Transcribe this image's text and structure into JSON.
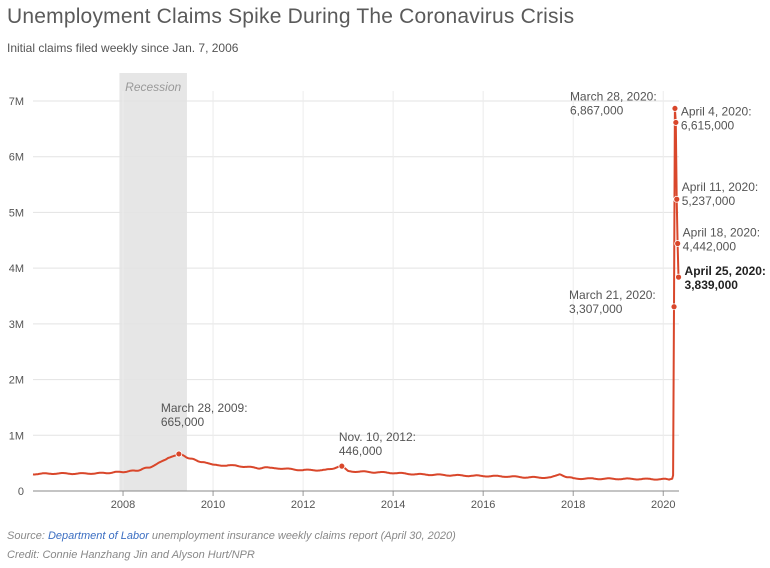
{
  "header": {
    "title": "Unemployment Claims Spike During The Coronavirus Crisis",
    "subtitle": "Initial claims filed weekly since Jan. 7, 2006"
  },
  "chart_data": {
    "type": "line",
    "title": "Unemployment Claims Spike During The Coronavirus Crisis",
    "subtitle": "Initial claims filed weekly since Jan. 7, 2006",
    "xlabel": "",
    "ylabel": "",
    "xlim": [
      2006.0,
      2020.35
    ],
    "ylim": [
      0,
      7000000
    ],
    "x_ticks": [
      2008,
      2010,
      2012,
      2014,
      2016,
      2018,
      2020
    ],
    "x_tick_labels": [
      "2008",
      "2010",
      "2012",
      "2014",
      "2016",
      "2018",
      "2020"
    ],
    "y_ticks": [
      0,
      1000000,
      2000000,
      3000000,
      4000000,
      5000000,
      6000000,
      7000000
    ],
    "y_tick_labels": [
      "0",
      "1M",
      "2M",
      "3M",
      "4M",
      "5M",
      "6M",
      "7M"
    ],
    "grid": true,
    "line_color": "#d9472b",
    "recession_color": "#e6e6e6",
    "recession": {
      "label": "Recession",
      "start": 2007.92,
      "end": 2009.42
    },
    "series": [
      {
        "name": "Initial claims",
        "x": [
          2006.0,
          2006.5,
          2007.0,
          2007.5,
          2007.92,
          2008.3,
          2008.6,
          2008.85,
          2009.0,
          2009.24,
          2009.5,
          2009.8,
          2010.0,
          2010.5,
          2011.0,
          2011.3,
          2011.5,
          2012.0,
          2012.5,
          2012.86,
          2013.0,
          2013.5,
          2014.0,
          2014.5,
          2015.0,
          2015.5,
          2016.0,
          2016.5,
          2017.0,
          2017.5,
          2017.7,
          2018.0,
          2018.5,
          2019.0,
          2019.5,
          2020.0,
          2020.15,
          2020.2,
          2020.22,
          2020.24
        ],
        "values": [
          305000,
          315000,
          312000,
          318000,
          340000,
          365000,
          430000,
          520000,
          600000,
          665000,
          580000,
          510000,
          465000,
          455000,
          410000,
          425000,
          405000,
          375000,
          375000,
          446000,
          355000,
          340000,
          325000,
          300000,
          290000,
          278000,
          270000,
          262000,
          245000,
          240000,
          290000,
          225000,
          220000,
          218000,
          215000,
          212000,
          211000,
          220000,
          282000,
          3307000
        ]
      }
    ],
    "points": [
      {
        "date": "March 28, 2009",
        "x": 2009.24,
        "value": 665000,
        "label_date": "March 28, 2009:",
        "label_value": "665,000",
        "bold": false
      },
      {
        "date": "Nov. 10, 2012",
        "x": 2012.86,
        "value": 446000,
        "label_date": "Nov. 10, 2012:",
        "label_value": "446,000",
        "bold": false
      },
      {
        "date": "March 21, 2020",
        "x": 2020.24,
        "value": 3307000,
        "label_date": "March 21, 2020:",
        "label_value": "3,307,000",
        "bold": false
      },
      {
        "date": "March 28, 2020",
        "x": 2020.26,
        "value": 6867000,
        "label_date": "March 28, 2020:",
        "label_value": "6,867,000",
        "bold": false
      },
      {
        "date": "April 4, 2020",
        "x": 2020.28,
        "value": 6615000,
        "label_date": "April 4, 2020:",
        "label_value": "6,615,000",
        "bold": false
      },
      {
        "date": "April 11, 2020",
        "x": 2020.3,
        "value": 5237000,
        "label_date": "April 11, 2020:",
        "label_value": "5,237,000",
        "bold": false
      },
      {
        "date": "April 18, 2020",
        "x": 2020.32,
        "value": 4442000,
        "label_date": "April 18, 2020:",
        "label_value": "4,442,000",
        "bold": false
      },
      {
        "date": "April 25, 2020",
        "x": 2020.34,
        "value": 3839000,
        "label_date": "April 25, 2020:",
        "label_value": "3,839,000",
        "bold": true
      }
    ]
  },
  "footer": {
    "source_prefix": "Source: ",
    "source_link": "Department of Labor",
    "source_suffix": " unemployment insurance weekly claims report (April 30, 2020)",
    "credit": "Credit: Connie Hanzhang Jin and Alyson Hurt/NPR"
  }
}
